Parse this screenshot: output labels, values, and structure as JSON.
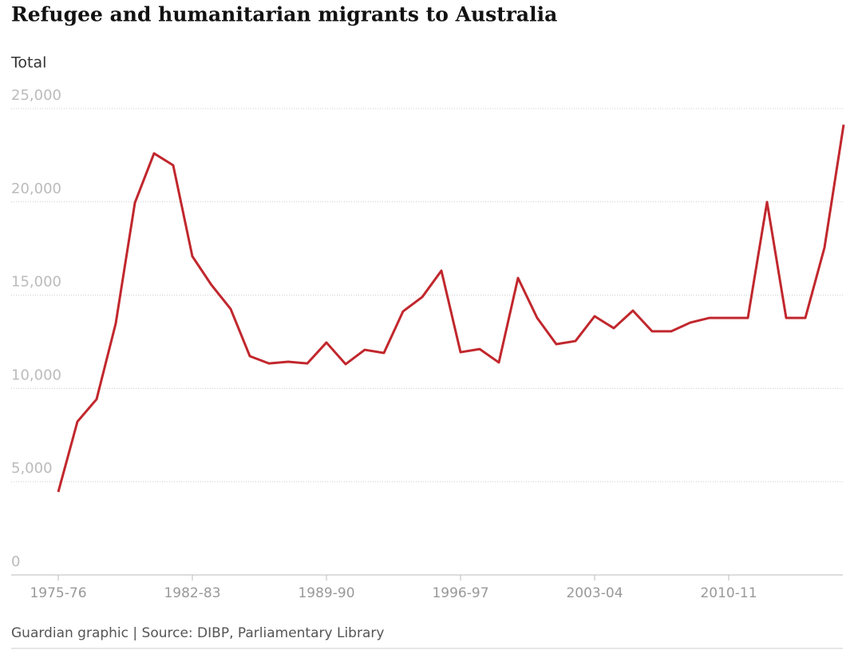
{
  "chart_data": {
    "type": "line",
    "title": "Refugee and humanitarian migrants to Australia",
    "subtitle": "Total",
    "source": "Guardian graphic | Source: DIBP, Parliamentary Library",
    "categories": [
      "1975-76",
      null,
      null,
      null,
      null,
      null,
      null,
      "1982-83",
      null,
      null,
      null,
      null,
      null,
      null,
      "1989-90",
      null,
      null,
      null,
      null,
      null,
      null,
      "1996-97",
      null,
      null,
      null,
      null,
      null,
      null,
      "2003-04",
      null,
      null,
      null,
      null,
      null,
      null,
      "2010-11",
      null,
      null,
      null,
      null,
      null,
      null
    ],
    "values": [
      4450,
      8220,
      9420,
      13480,
      19950,
      22600,
      21960,
      17080,
      15540,
      14260,
      11730,
      11340,
      11430,
      11340,
      12460,
      11300,
      12070,
      11900,
      14130,
      14900,
      16310,
      11940,
      12110,
      11390,
      15920,
      13780,
      12370,
      12540,
      13870,
      13230,
      14170,
      13060,
      13060,
      13530,
      13780,
      13780,
      13780,
      19990,
      13780,
      13780,
      17550,
      24140
    ],
    "color": "#c1272d",
    "ylim": [
      0,
      25000
    ],
    "yticks": [
      0,
      {
        "value": 5000,
        "label": "5,000"
      },
      {
        "value": 10000,
        "label": "10,000"
      },
      {
        "value": 15000,
        "label": "15,000"
      },
      {
        "value": 20000,
        "label": "20,000"
      },
      {
        "value": 25000,
        "label": "25,000"
      }
    ],
    "grid": true
  }
}
